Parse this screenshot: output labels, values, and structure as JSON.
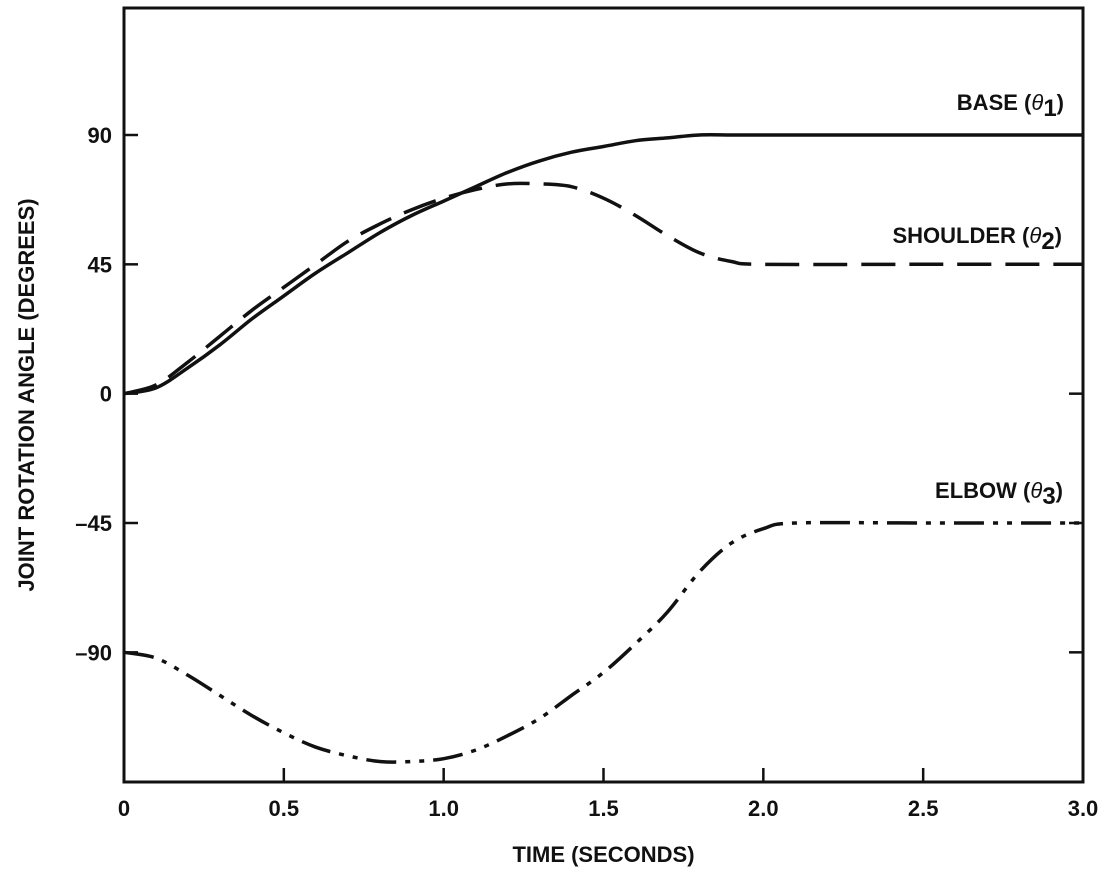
{
  "chart_data": {
    "type": "line",
    "title": "",
    "xlabel": "TIME (SECONDS)",
    "ylabel": "JOINT ROTATION ANGLE (DEGREES)",
    "xlim": [
      0,
      3.0
    ],
    "ylim": [
      -135,
      135
    ],
    "x_ticks": [
      {
        "value": 0,
        "label": "0"
      },
      {
        "value": 0.5,
        "label": "0.5"
      },
      {
        "value": 1.0,
        "label": "1.0"
      },
      {
        "value": 1.5,
        "label": "1.5"
      },
      {
        "value": 2.0,
        "label": "2.0"
      },
      {
        "value": 2.5,
        "label": "2.5"
      },
      {
        "value": 3.0,
        "label": "3.0"
      }
    ],
    "y_ticks": [
      {
        "value": 90,
        "label": "90"
      },
      {
        "value": 45,
        "label": "45"
      },
      {
        "value": 0,
        "label": "0"
      },
      {
        "value": -45,
        "label": "–45"
      },
      {
        "value": -90,
        "label": "–90"
      }
    ],
    "grid": false,
    "legend": "none",
    "series": [
      {
        "name": "BASE",
        "symbol": "θ",
        "subscript": "1",
        "line_style": "solid",
        "color": "#111111",
        "x": [
          0,
          0.1,
          0.2,
          0.3,
          0.4,
          0.5,
          0.6,
          0.7,
          0.8,
          0.9,
          1.0,
          1.1,
          1.2,
          1.3,
          1.4,
          1.5,
          1.6,
          1.7,
          1.8,
          1.9,
          2.0,
          2.5,
          3.0
        ],
        "y": [
          0,
          2,
          9,
          17,
          26,
          34,
          42,
          49,
          56,
          62,
          67,
          72,
          77,
          81,
          84,
          86,
          88,
          89,
          90,
          90,
          90,
          90,
          90
        ]
      },
      {
        "name": "SHOULDER",
        "symbol": "θ",
        "subscript": "2",
        "line_style": "dashed",
        "color": "#111111",
        "x": [
          0,
          0.1,
          0.2,
          0.3,
          0.4,
          0.5,
          0.6,
          0.7,
          0.8,
          0.9,
          1.0,
          1.1,
          1.2,
          1.3,
          1.4,
          1.5,
          1.6,
          1.7,
          1.8,
          1.9,
          2.0,
          2.5,
          3.0
        ],
        "y": [
          0,
          3,
          11,
          20,
          29,
          37,
          45,
          53,
          59,
          64,
          68,
          71,
          73,
          73,
          72,
          68,
          62,
          55,
          49,
          46,
          45,
          45,
          45
        ]
      },
      {
        "name": "ELBOW",
        "symbol": "θ",
        "subscript": "3",
        "line_style": "dash-dot-dot",
        "color": "#111111",
        "x": [
          0,
          0.1,
          0.2,
          0.3,
          0.4,
          0.5,
          0.6,
          0.7,
          0.8,
          0.9,
          1.0,
          1.1,
          1.2,
          1.3,
          1.4,
          1.5,
          1.6,
          1.7,
          1.8,
          1.9,
          2.0,
          2.1,
          2.5,
          3.0
        ],
        "y": [
          -90,
          -92,
          -98,
          -105,
          -112,
          -118,
          -123,
          -126,
          -128,
          -128,
          -127,
          -124,
          -119,
          -113,
          -105,
          -97,
          -87,
          -76,
          -62,
          -52,
          -47,
          -45,
          -45,
          -45
        ]
      }
    ]
  }
}
